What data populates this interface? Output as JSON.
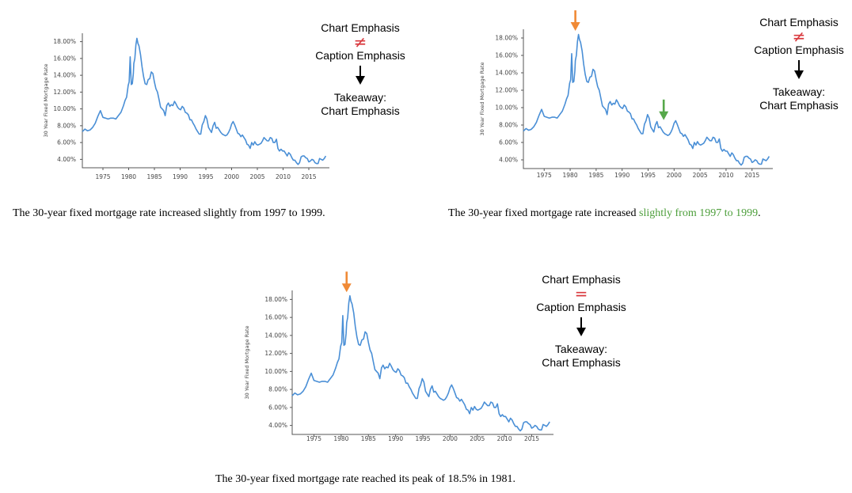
{
  "colors": {
    "line": "#4a8fd6",
    "orange_arrow": "#f08a36",
    "green_arrow": "#56a84a",
    "not_equal": "#d9393e",
    "equal": "#d9393e",
    "highlight_text": "#4c9e3a"
  },
  "panels": [
    {
      "flow": {
        "chart_emphasis": "Chart Emphasis",
        "relation": "≠",
        "caption_emphasis": "Caption Emphasis",
        "takeaway_label": "Takeaway:",
        "takeaway_value": "Chart Emphasis"
      },
      "caption": {
        "pre": "The 30-year fixed mortgage rate increased slightly from 1997 to 1999.",
        "highlight": "",
        "post": ""
      },
      "annotations": []
    },
    {
      "flow": {
        "chart_emphasis": "Chart Emphasis",
        "relation": "≠",
        "caption_emphasis": "Caption Emphasis",
        "takeaway_label": "Takeaway:",
        "takeaway_value": "Chart Emphasis"
      },
      "caption": {
        "pre": "The 30-year fixed mortgage rate increased ",
        "highlight": "slightly from 1997 to 1999",
        "post": "."
      },
      "annotations": [
        {
          "x": 1981.0,
          "y": 18.45,
          "color": "orange_arrow"
        },
        {
          "x": 1998.0,
          "y": 8.2,
          "color": "green_arrow"
        }
      ]
    },
    {
      "flow": {
        "chart_emphasis": "Chart Emphasis",
        "relation": "=",
        "caption_emphasis": "Caption Emphasis",
        "takeaway_label": "Takeaway:",
        "takeaway_value": "Chart Emphasis"
      },
      "caption": {
        "pre": "The 30-year fixed mortgage rate reached its peak of 18.5% in 1981.",
        "highlight": "",
        "post": ""
      },
      "annotations": [
        {
          "x": 1981.0,
          "y": 18.45,
          "color": "orange_arrow"
        }
      ]
    }
  ],
  "chart_data": [
    {
      "type": "line",
      "title": "",
      "xlabel": "",
      "ylabel": "30 Year Fixed Mortgage Rate",
      "xlim": [
        1971,
        2019
      ],
      "ylim": [
        3.0,
        19.0
      ],
      "x_ticks": [
        1975,
        1980,
        1985,
        1990,
        1995,
        2000,
        2005,
        2010,
        2015
      ],
      "y_ticks": [
        4,
        6,
        8,
        10,
        12,
        14,
        16,
        18
      ],
      "y_tick_labels": [
        "4.00%",
        "6.00%",
        "8.00%",
        "10.00%",
        "12.00%",
        "14.00%",
        "16.00%",
        "18.00%"
      ],
      "grid": false,
      "series": [
        {
          "x": [
            1971.0,
            1971.5,
            1972.0,
            1972.5,
            1973.0,
            1973.5,
            1974.0,
            1974.5,
            1975.0,
            1975.5,
            1976.0,
            1976.5,
            1977.0,
            1977.5,
            1978.0,
            1978.5,
            1979.0,
            1979.3,
            1979.6,
            1979.9,
            1980.1,
            1980.3,
            1980.5,
            1980.7,
            1980.9,
            1981.0,
            1981.2,
            1981.4,
            1981.6,
            1981.8,
            1982.0,
            1982.3,
            1982.6,
            1982.9,
            1983.2,
            1983.5,
            1983.8,
            1984.1,
            1984.4,
            1984.7,
            1985.0,
            1985.3,
            1985.6,
            1985.9,
            1986.2,
            1986.5,
            1986.8,
            1987.1,
            1987.4,
            1987.7,
            1988.0,
            1988.3,
            1988.6,
            1988.9,
            1989.2,
            1989.5,
            1989.8,
            1990.1,
            1990.4,
            1990.7,
            1991.0,
            1991.3,
            1991.6,
            1991.9,
            1992.2,
            1992.5,
            1992.8,
            1993.1,
            1993.4,
            1993.7,
            1994.0,
            1994.3,
            1994.6,
            1994.9,
            1995.2,
            1995.5,
            1995.8,
            1996.1,
            1996.4,
            1996.7,
            1997.0,
            1997.3,
            1997.6,
            1997.9,
            1998.2,
            1998.5,
            1998.8,
            1999.1,
            1999.4,
            1999.7,
            2000.0,
            2000.3,
            2000.6,
            2000.9,
            2001.2,
            2001.5,
            2001.8,
            2002.1,
            2002.4,
            2002.7,
            2003.0,
            2003.3,
            2003.6,
            2003.9,
            2004.2,
            2004.5,
            2004.8,
            2005.1,
            2005.4,
            2005.7,
            2006.0,
            2006.3,
            2006.6,
            2006.9,
            2007.2,
            2007.5,
            2007.8,
            2008.1,
            2008.4,
            2008.7,
            2009.0,
            2009.3,
            2009.6,
            2009.9,
            2010.2,
            2010.5,
            2010.8,
            2011.1,
            2011.4,
            2011.7,
            2012.0,
            2012.3,
            2012.6,
            2012.9,
            2013.2,
            2013.5,
            2013.8,
            2014.1,
            2014.4,
            2014.7,
            2015.0,
            2015.3,
            2015.6,
            2015.9,
            2016.2,
            2016.5,
            2016.8,
            2017.1,
            2017.4,
            2017.7,
            2018.0,
            2018.3
          ],
          "y": [
            7.3,
            7.6,
            7.4,
            7.5,
            7.8,
            8.3,
            9.1,
            9.8,
            9.0,
            8.9,
            8.8,
            8.9,
            8.9,
            8.8,
            9.2,
            9.6,
            10.4,
            11.0,
            11.4,
            12.8,
            13.2,
            16.2,
            12.9,
            13.0,
            14.2,
            15.4,
            16.0,
            17.6,
            18.4,
            17.8,
            17.5,
            16.5,
            15.0,
            13.8,
            13.0,
            12.9,
            13.5,
            13.6,
            14.4,
            14.2,
            13.2,
            12.4,
            12.0,
            11.1,
            10.2,
            10.0,
            9.8,
            9.2,
            10.4,
            10.7,
            10.3,
            10.5,
            10.4,
            10.9,
            10.6,
            10.2,
            10.0,
            9.9,
            10.3,
            10.1,
            9.6,
            9.5,
            9.3,
            8.7,
            8.7,
            8.3,
            8.0,
            7.6,
            7.3,
            7.0,
            7.0,
            8.1,
            8.5,
            9.2,
            8.8,
            7.8,
            7.5,
            7.2,
            8.0,
            8.4,
            7.7,
            7.8,
            7.5,
            7.2,
            7.0,
            6.9,
            6.8,
            6.9,
            7.2,
            7.6,
            8.2,
            8.5,
            8.1,
            7.6,
            7.1,
            7.0,
            6.7,
            6.9,
            6.6,
            6.3,
            5.8,
            5.7,
            5.3,
            6.0,
            5.7,
            6.1,
            5.8,
            5.7,
            5.8,
            5.9,
            6.2,
            6.6,
            6.4,
            6.2,
            6.2,
            6.6,
            6.5,
            6.0,
            6.0,
            6.4,
            5.3,
            5.0,
            5.2,
            5.0,
            5.0,
            4.7,
            4.4,
            4.8,
            4.6,
            4.2,
            3.9,
            3.9,
            3.6,
            3.4,
            3.6,
            4.3,
            4.4,
            4.4,
            4.2,
            4.1,
            3.7,
            3.8,
            4.0,
            3.9,
            3.6,
            3.5,
            3.5,
            4.1,
            4.0,
            3.9,
            4.1,
            4.4
          ]
        }
      ]
    }
  ]
}
